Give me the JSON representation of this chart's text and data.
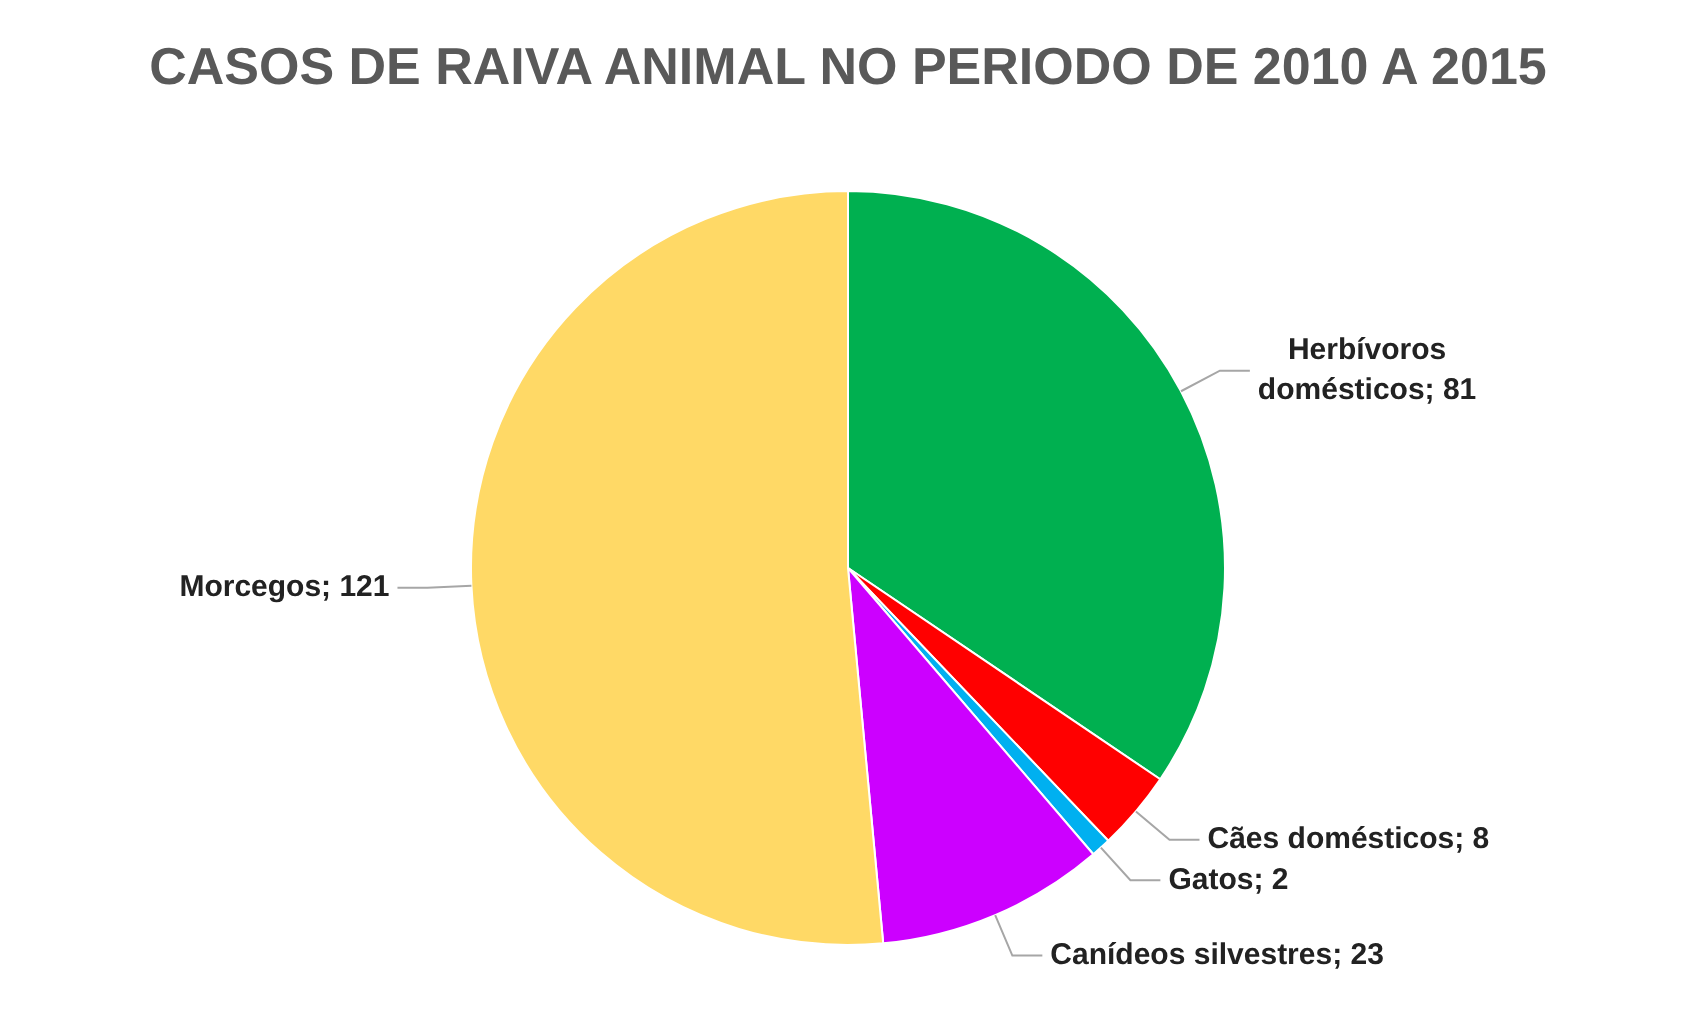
{
  "chart_data": {
    "type": "pie",
    "title": "CASOS DE RAIVA ANIMAL NO PERIODO DE 2010 A 2015",
    "categories": [
      "Herbívoros domésticos",
      "Cães domésticos",
      "Gatos",
      "Canídeos silvestres",
      "Morcegos"
    ],
    "values": [
      81,
      8,
      2,
      23,
      121
    ],
    "value_labels": [
      "; 81",
      "; 8",
      "; 2",
      "; 23",
      "; 121"
    ],
    "colors": [
      "#00b050",
      "#ff0000",
      "#00b0f0",
      "#cc00ff",
      "#ffd966"
    ],
    "legend": false
  }
}
